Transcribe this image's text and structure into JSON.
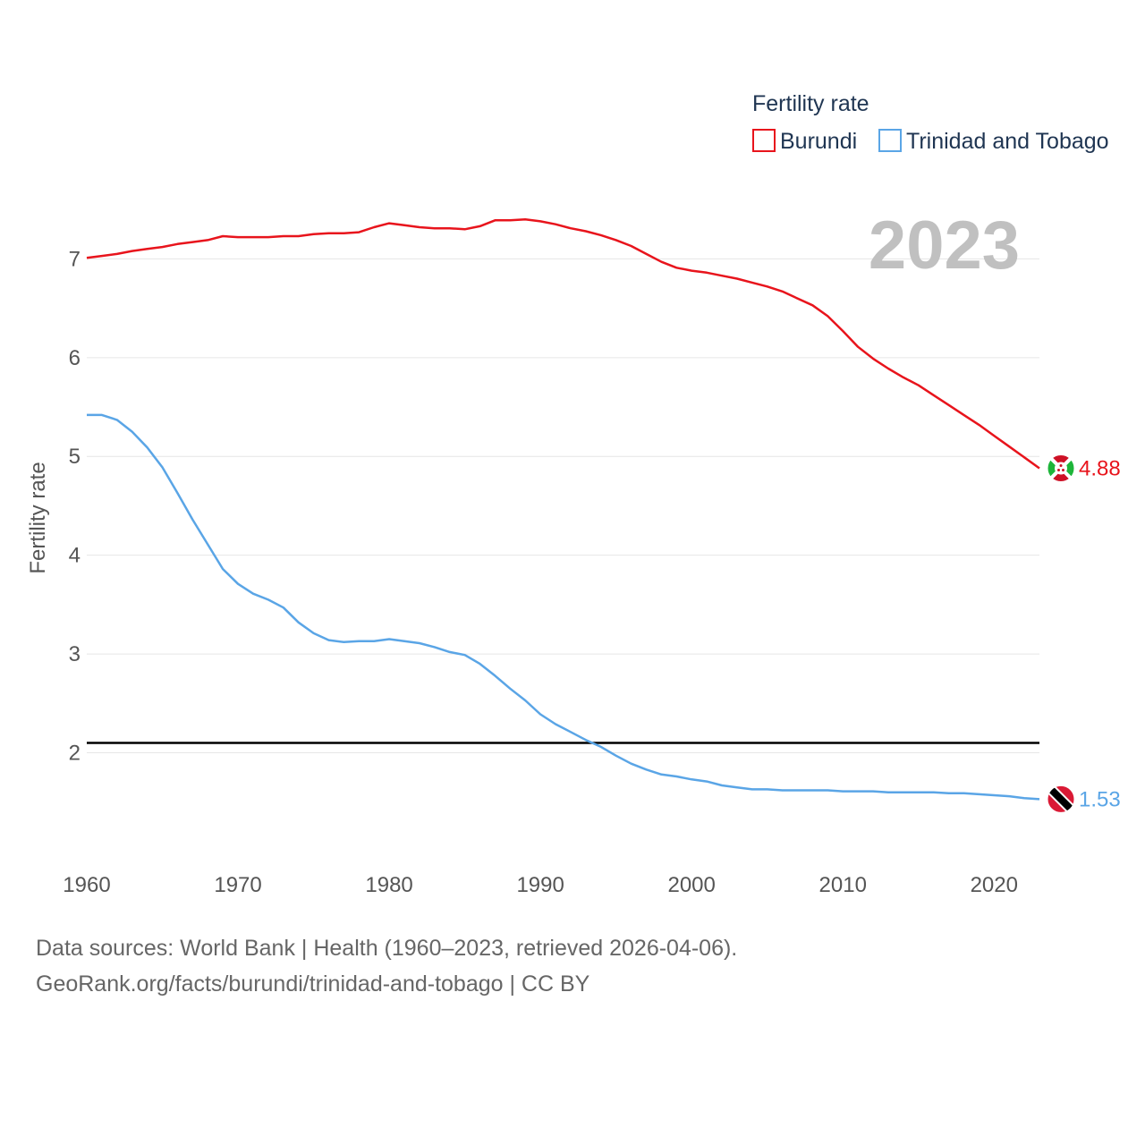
{
  "chart_data": {
    "type": "line",
    "title": "",
    "xlabel": "",
    "ylabel": "Fertility rate",
    "xlim": [
      1960,
      2023
    ],
    "ylim": [
      0.9,
      7.9
    ],
    "x_ticks": [
      1960,
      1970,
      1980,
      1990,
      2000,
      2010,
      2020
    ],
    "y_ticks": [
      2,
      3,
      4,
      5,
      6,
      7
    ],
    "grid": true,
    "reference_line": 2.1,
    "year_label": "2023",
    "legend": {
      "title": "Fertility rate",
      "position": "top-right"
    },
    "x": [
      1960,
      1961,
      1962,
      1963,
      1964,
      1965,
      1966,
      1967,
      1968,
      1969,
      1970,
      1971,
      1972,
      1973,
      1974,
      1975,
      1976,
      1977,
      1978,
      1979,
      1980,
      1981,
      1982,
      1983,
      1984,
      1985,
      1986,
      1987,
      1988,
      1989,
      1990,
      1991,
      1992,
      1993,
      1994,
      1995,
      1996,
      1997,
      1998,
      1999,
      2000,
      2001,
      2002,
      2003,
      2004,
      2005,
      2006,
      2007,
      2008,
      2009,
      2010,
      2011,
      2012,
      2013,
      2014,
      2015,
      2016,
      2017,
      2018,
      2019,
      2020,
      2021,
      2022,
      2023
    ],
    "series": [
      {
        "name": "Burundi",
        "color": "#e8141c",
        "end_label": "4.88",
        "flag": "burundi-flag",
        "values": [
          7.01,
          7.03,
          7.05,
          7.08,
          7.1,
          7.12,
          7.15,
          7.17,
          7.19,
          7.23,
          7.22,
          7.22,
          7.22,
          7.23,
          7.23,
          7.25,
          7.26,
          7.26,
          7.27,
          7.32,
          7.36,
          7.34,
          7.32,
          7.31,
          7.31,
          7.3,
          7.33,
          7.39,
          7.39,
          7.4,
          7.38,
          7.35,
          7.31,
          7.28,
          7.24,
          7.19,
          7.13,
          7.05,
          6.97,
          6.91,
          6.88,
          6.86,
          6.83,
          6.8,
          6.76,
          6.72,
          6.67,
          6.6,
          6.53,
          6.42,
          6.27,
          6.11,
          5.99,
          5.89,
          5.8,
          5.72,
          5.62,
          5.52,
          5.42,
          5.32,
          5.21,
          5.1,
          4.99,
          4.88
        ]
      },
      {
        "name": "Trinidad and Tobago",
        "color": "#5aa5e6",
        "end_label": "1.53",
        "flag": "trinidad-and-tobago-flag",
        "values": [
          5.42,
          5.42,
          5.37,
          5.25,
          5.09,
          4.89,
          4.63,
          4.36,
          4.11,
          3.86,
          3.71,
          3.61,
          3.55,
          3.47,
          3.32,
          3.21,
          3.14,
          3.12,
          3.13,
          3.13,
          3.15,
          3.13,
          3.11,
          3.07,
          3.02,
          2.99,
          2.9,
          2.78,
          2.65,
          2.53,
          2.39,
          2.29,
          2.21,
          2.13,
          2.06,
          1.97,
          1.89,
          1.83,
          1.78,
          1.76,
          1.73,
          1.71,
          1.67,
          1.65,
          1.63,
          1.63,
          1.62,
          1.62,
          1.62,
          1.62,
          1.61,
          1.61,
          1.61,
          1.6,
          1.6,
          1.6,
          1.6,
          1.59,
          1.59,
          1.58,
          1.57,
          1.56,
          1.54,
          1.53
        ]
      }
    ]
  },
  "footer": {
    "source_line": "Data sources: World Bank | Health (1960–2023, retrieved 2026-04-06).",
    "url_line": "GeoRank.org/facts/burundi/trinidad-and-tobago | CC BY"
  }
}
